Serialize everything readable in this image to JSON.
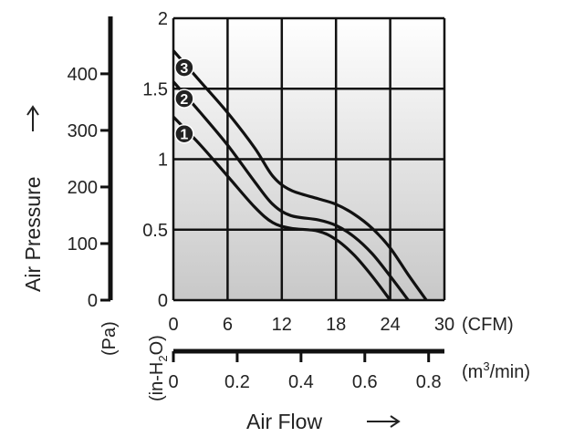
{
  "chart_data": {
    "type": "line",
    "title": "",
    "xlabel": "Air Flow",
    "ylabel": "Air Pressure",
    "x_unit": "(CFM)",
    "x2_unit_prefix": "(m",
    "x2_unit_sup": "3",
    "x2_unit_suffix": "/min)",
    "y_unit": "(in-H",
    "y_unit_sub": "2",
    "y_unit_end": "O)",
    "y2_unit": "(Pa)",
    "xlim": [
      0,
      30
    ],
    "ylim": [
      0,
      2
    ],
    "x_ticks": [
      "0",
      "6",
      "12",
      "18",
      "24",
      "30"
    ],
    "y_ticks": [
      "0",
      "0.5",
      "1",
      "1.5",
      "2"
    ],
    "x2_ticks": [
      "0",
      "0.2",
      "0.4",
      "0.6",
      "0.8"
    ],
    "x2_values": [
      0,
      0.2,
      0.4,
      0.6,
      0.8
    ],
    "y2_ticks": [
      "0",
      "100",
      "200",
      "300",
      "400"
    ],
    "y2_values": [
      0,
      100,
      200,
      300,
      400
    ],
    "grid": true,
    "series": [
      {
        "name": "1",
        "x": [
          0,
          3,
          6,
          9,
          11,
          13,
          16,
          18,
          20,
          22,
          24
        ],
        "y": [
          1.3,
          1.1,
          0.88,
          0.66,
          0.55,
          0.51,
          0.49,
          0.43,
          0.32,
          0.17,
          0.0
        ]
      },
      {
        "name": "2",
        "x": [
          0,
          3,
          6,
          9,
          11,
          13,
          16,
          18,
          20,
          22,
          24,
          26
        ],
        "y": [
          1.55,
          1.33,
          1.1,
          0.84,
          0.68,
          0.6,
          0.57,
          0.53,
          0.45,
          0.33,
          0.17,
          0.0
        ]
      },
      {
        "name": "3",
        "x": [
          0,
          3,
          6,
          9,
          11,
          13,
          16,
          18,
          20,
          22,
          24,
          26,
          28
        ],
        "y": [
          1.77,
          1.55,
          1.33,
          1.08,
          0.88,
          0.78,
          0.72,
          0.68,
          0.61,
          0.51,
          0.37,
          0.18,
          0.0
        ]
      }
    ]
  }
}
